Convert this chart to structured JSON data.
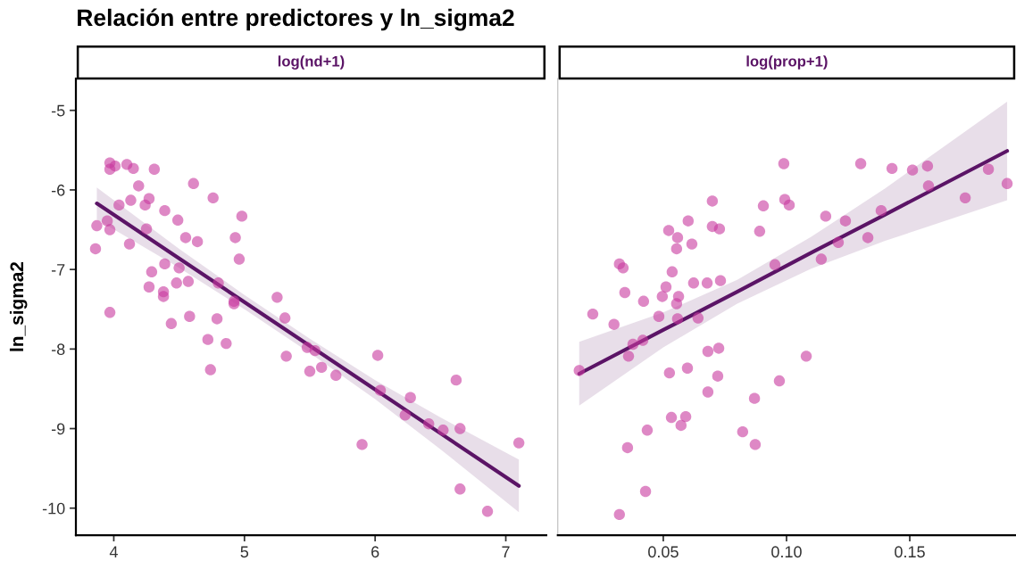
{
  "chart_data": [
    {
      "type": "scatter",
      "title": "Relación entre predictores y ln_sigma2",
      "subtitle": "log(nd+1)",
      "ylabel": "ln_sigma2",
      "xlim": [
        3.71,
        7.31
      ],
      "xticks": [
        4,
        5,
        6,
        7
      ],
      "ylim": [
        -10.34,
        -4.6
      ],
      "yticks": [
        -10,
        -9,
        -8,
        -7,
        -6,
        -5
      ],
      "grid": false,
      "tick_labels": "xy",
      "series": [
        {
          "marker": "circle",
          "color": "#c8399f",
          "x": [
            3.87,
            3.86,
            3.97,
            3.97,
            4.01,
            4.1,
            4.15,
            4.31,
            4.19,
            4.61,
            4.76,
            4.04,
            4.13,
            4.27,
            4.24,
            4.39,
            4.49,
            3.95,
            3.97,
            4.25,
            4.55,
            4.64,
            4.98,
            4.93,
            4.96,
            4.12,
            3.97,
            4.39,
            4.29,
            4.5,
            4.57,
            4.48,
            4.8,
            4.38,
            4.38,
            4.27,
            4.92,
            4.92,
            4.44,
            4.58,
            4.79,
            4.72,
            4.86,
            4.74,
            5.25,
            5.31,
            5.32,
            5.48,
            5.54,
            5.5,
            5.59,
            5.7,
            5.9,
            6.02,
            6.04,
            6.27,
            6.23,
            6.41,
            6.52,
            6.62,
            6.65,
            7.1,
            6.65,
            6.86
          ],
          "values": [
            -6.45,
            -6.74,
            -5.66,
            -5.74,
            -5.7,
            -5.68,
            -5.73,
            -5.74,
            -5.95,
            -5.92,
            -6.1,
            -6.19,
            -6.13,
            -6.11,
            -6.19,
            -6.26,
            -6.38,
            -6.39,
            -6.5,
            -6.49,
            -6.6,
            -6.65,
            -6.33,
            -6.6,
            -6.87,
            -6.68,
            -7.54,
            -6.93,
            -7.03,
            -6.98,
            -7.15,
            -7.17,
            -7.17,
            -7.28,
            -7.34,
            -7.22,
            -7.4,
            -7.43,
            -7.68,
            -7.59,
            -7.62,
            -7.88,
            -7.93,
            -8.26,
            -7.35,
            -7.61,
            -8.09,
            -7.98,
            -8.02,
            -8.28,
            -8.23,
            -8.33,
            -9.2,
            -8.08,
            -8.52,
            -8.61,
            -8.83,
            -8.94,
            -9.02,
            -8.39,
            -9.0,
            -9.18,
            -9.76,
            -10.04
          ]
        },
        {
          "type": "line",
          "marker": "none",
          "color": "#5b1466",
          "x": [
            3.87,
            4.5,
            5.0,
            5.5,
            6.0,
            6.5,
            7.1
          ],
          "values": [
            -6.17,
            -6.86,
            -7.41,
            -7.96,
            -8.51,
            -9.06,
            -9.72
          ],
          "lower": [
            -6.37,
            -6.98,
            -7.5,
            -8.05,
            -8.63,
            -9.26,
            -10.05
          ],
          "upper": [
            -5.97,
            -6.74,
            -7.32,
            -7.87,
            -8.39,
            -8.86,
            -9.39
          ]
        }
      ]
    },
    {
      "type": "scatter",
      "subtitle": "log(prop+1)",
      "xlim": [
        0.0072,
        0.1931
      ],
      "xticks": [
        {
          "value": 0.05,
          "label": "0.05"
        },
        {
          "value": 0.1,
          "label": "0.10"
        },
        {
          "value": 0.15,
          "label": "0.15"
        }
      ],
      "ylim": [
        -10.34,
        -4.6
      ],
      "yticks": [
        -10,
        -9,
        -8,
        -7,
        -6,
        -5
      ],
      "grid": false,
      "tick_labels": "x",
      "series": [
        {
          "marker": "circle",
          "color": "#c8399f",
          "x": [
            0.0214,
            0.03,
            0.0322,
            0.0337,
            0.0344,
            0.042,
            0.0482,
            0.0496,
            0.0511,
            0.0522,
            0.0536,
            0.0554,
            0.0558,
            0.0554,
            0.0562,
            0.0558,
            0.0601,
            0.0616,
            0.0623,
            0.0641,
            0.0678,
            0.0699,
            0.0699,
            0.0728,
            0.0732,
            0.0891,
            0.0906,
            0.0953,
            0.0989,
            0.0993,
            0.1011,
            0.1159,
            0.1239,
            0.121,
            0.1141,
            0.133,
            0.1384,
            0.1301,
            0.1428,
            0.1511,
            0.1572,
            0.1576,
            0.1725,
            0.1819,
            0.1895,
            0.0159,
            0.0377,
            0.0417,
            0.0359,
            0.0681,
            0.0725,
            0.0525,
            0.0598,
            0.0721,
            0.108,
            0.0971,
            0.0681,
            0.087,
            0.0533,
            0.0591,
            0.0572,
            0.0435,
            0.0355,
            0.0822,
            0.0873,
            0.0428,
            0.0322
          ],
          "values": [
            -7.56,
            -7.69,
            -6.93,
            -6.98,
            -7.29,
            -7.4,
            -7.59,
            -7.34,
            -7.22,
            -6.51,
            -7.03,
            -6.74,
            -6.6,
            -7.43,
            -7.34,
            -7.62,
            -6.39,
            -6.68,
            -7.17,
            -7.61,
            -7.17,
            -6.14,
            -6.46,
            -6.49,
            -7.14,
            -6.52,
            -6.2,
            -6.94,
            -5.67,
            -6.12,
            -6.19,
            -6.33,
            -6.39,
            -6.66,
            -6.87,
            -6.6,
            -6.26,
            -5.67,
            -5.73,
            -5.75,
            -5.7,
            -5.95,
            -6.1,
            -5.74,
            -5.92,
            -8.27,
            -7.94,
            -7.89,
            -8.09,
            -8.03,
            -7.99,
            -8.3,
            -8.24,
            -8.34,
            -8.09,
            -8.4,
            -8.54,
            -8.62,
            -8.86,
            -8.85,
            -8.96,
            -9.02,
            -9.24,
            -9.04,
            -9.2,
            -9.79,
            -10.08
          ]
        },
        {
          "type": "line",
          "marker": "none",
          "color": "#5b1466",
          "x": [
            0.0159,
            0.05,
            0.08,
            0.11,
            0.14,
            0.1895
          ],
          "values": [
            -8.31,
            -7.76,
            -7.28,
            -6.79,
            -6.31,
            -5.51
          ],
          "lower": [
            -8.71,
            -7.98,
            -7.43,
            -6.99,
            -6.64,
            -6.13
          ],
          "upper": [
            -7.91,
            -7.54,
            -7.13,
            -6.59,
            -5.98,
            -4.89
          ]
        }
      ]
    }
  ]
}
